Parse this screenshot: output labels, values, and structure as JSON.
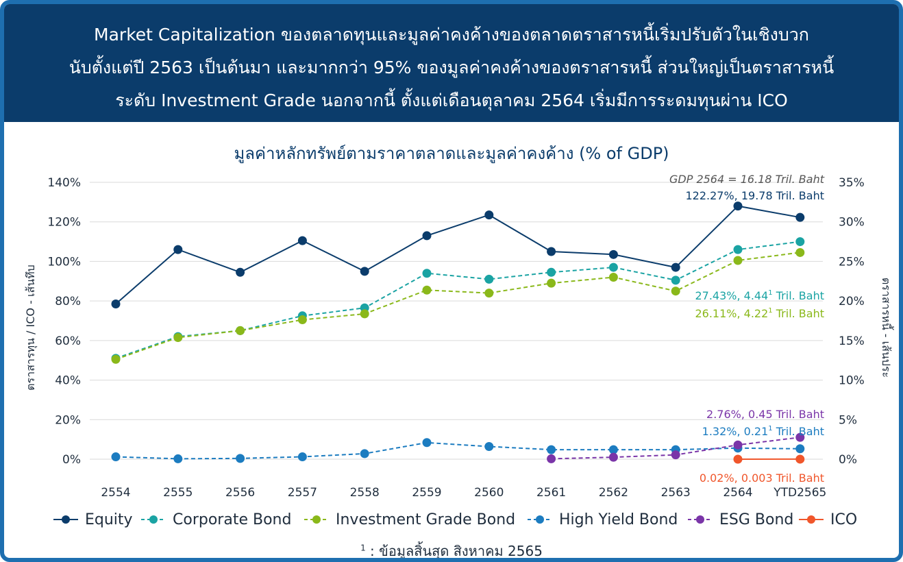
{
  "header": {
    "lines": [
      "Market Capitalization ของตลาดทุนและมูลค่าคงค้างของตลาดตราสารหนี้เริ่มปรับตัวในเชิงบวก",
      "นับตั้งแต่ปี 2563 เป็นต้นมา และมากกว่า 95% ของมูลค่าคงค้างของตราสารหนี้ ส่วนใหญ่เป็นตราสารหนี้",
      "ระดับ Investment Grade นอกจากนี้ ตั้งแต่เดือนตุลาคม 2564 เริ่มมีการระดมทุนผ่าน ICO"
    ]
  },
  "colors": {
    "header_bg": "#0b3c6b",
    "frame": "#1e6fb0",
    "equity": "#0b3c6b",
    "corporate_bond": "#1aa3a3",
    "investment_grade_bond": "#8ab81a",
    "high_yield_bond": "#1c7cc0",
    "esg_bond": "#7a35a8",
    "ico": "#f0562b"
  },
  "chart_data": {
    "type": "line",
    "title": "มูลค่าหลักทรัพย์ตามราคาตลาดและมูลค่าคงค้าง (% of GDP)",
    "categories": [
      "2554",
      "2555",
      "2556",
      "2557",
      "2558",
      "2559",
      "2560",
      "2561",
      "2562",
      "2563",
      "2564",
      "YTD2565"
    ],
    "ylabel_left": "ตราสารทุน / ICO - เส้นทึบ",
    "ylabel_right": "ตราสารหนี้ - เส้นประ",
    "ylim_left": [
      0,
      140
    ],
    "ylim_right": [
      0,
      35
    ],
    "yticks_left": [
      "0%",
      "20%",
      "40%",
      "60%",
      "80%",
      "100%",
      "120%",
      "140%"
    ],
    "yticks_right": [
      "0%",
      "5%",
      "10%",
      "15%",
      "20%",
      "25%",
      "30%",
      "35%"
    ],
    "grid": true,
    "legend_position": "bottom",
    "series": [
      {
        "key": "equity",
        "name": "Equity",
        "axis": "left",
        "dashed": false,
        "values": [
          78.5,
          106,
          94.5,
          110.5,
          95,
          113,
          123.5,
          105,
          103.5,
          97,
          128,
          122.27
        ]
      },
      {
        "key": "corporate_bond",
        "name": "Corporate Bond",
        "axis": "left",
        "dashed": true,
        "values": [
          51,
          62,
          65,
          72.5,
          76.5,
          94,
          91,
          94.5,
          97,
          90.5,
          106,
          110
        ]
      },
      {
        "key": "investment_grade_bond",
        "name": "Investment Grade Bond",
        "axis": "left",
        "dashed": true,
        "values": [
          50.5,
          61.5,
          65,
          70.5,
          73.5,
          85.5,
          84,
          89,
          92,
          85,
          100.5,
          104.5
        ]
      },
      {
        "key": "high_yield_bond",
        "name": "High Yield Bond",
        "axis": "right",
        "dashed": true,
        "values": [
          0.3,
          0.05,
          0.1,
          0.3,
          0.7,
          2.1,
          1.6,
          1.2,
          1.2,
          1.2,
          1.4,
          1.32
        ]
      },
      {
        "key": "esg_bond",
        "name": "ESG Bond",
        "axis": "right",
        "dashed": true,
        "values": [
          null,
          null,
          null,
          null,
          null,
          null,
          null,
          0.05,
          0.25,
          0.55,
          1.8,
          2.76
        ]
      },
      {
        "key": "ico",
        "name": "ICO",
        "axis": "left",
        "dashed": false,
        "values": [
          null,
          null,
          null,
          null,
          null,
          null,
          null,
          null,
          null,
          null,
          0.01,
          0.02
        ]
      }
    ],
    "annotations": [
      {
        "key": "gdp",
        "text": "GDP 2564 = 16.18 Tril. Baht",
        "italic": true
      },
      {
        "key": "equity",
        "text": "122.27%, 19.78 Tril. Baht"
      },
      {
        "key": "corporate_bond",
        "text": "27.43%, 4.44",
        "sup": "1",
        "suffix": " Tril. Baht"
      },
      {
        "key": "investment_grade_bond",
        "text": "26.11%, 4.22",
        "sup": "1",
        "suffix": " Tril. Baht"
      },
      {
        "key": "esg_bond",
        "text": "2.76%, 0.45  Tril. Baht"
      },
      {
        "key": "high_yield_bond",
        "text": "1.32%, 0.21",
        "sup": "1",
        "suffix": " Tril. Baht"
      },
      {
        "key": "ico",
        "text": "0.02%, 0.003 Tril. Baht"
      }
    ]
  },
  "footnote": {
    "sup": "1",
    "text": " : ข้อมูลสิ้นสุด สิงหาคม 2565"
  }
}
